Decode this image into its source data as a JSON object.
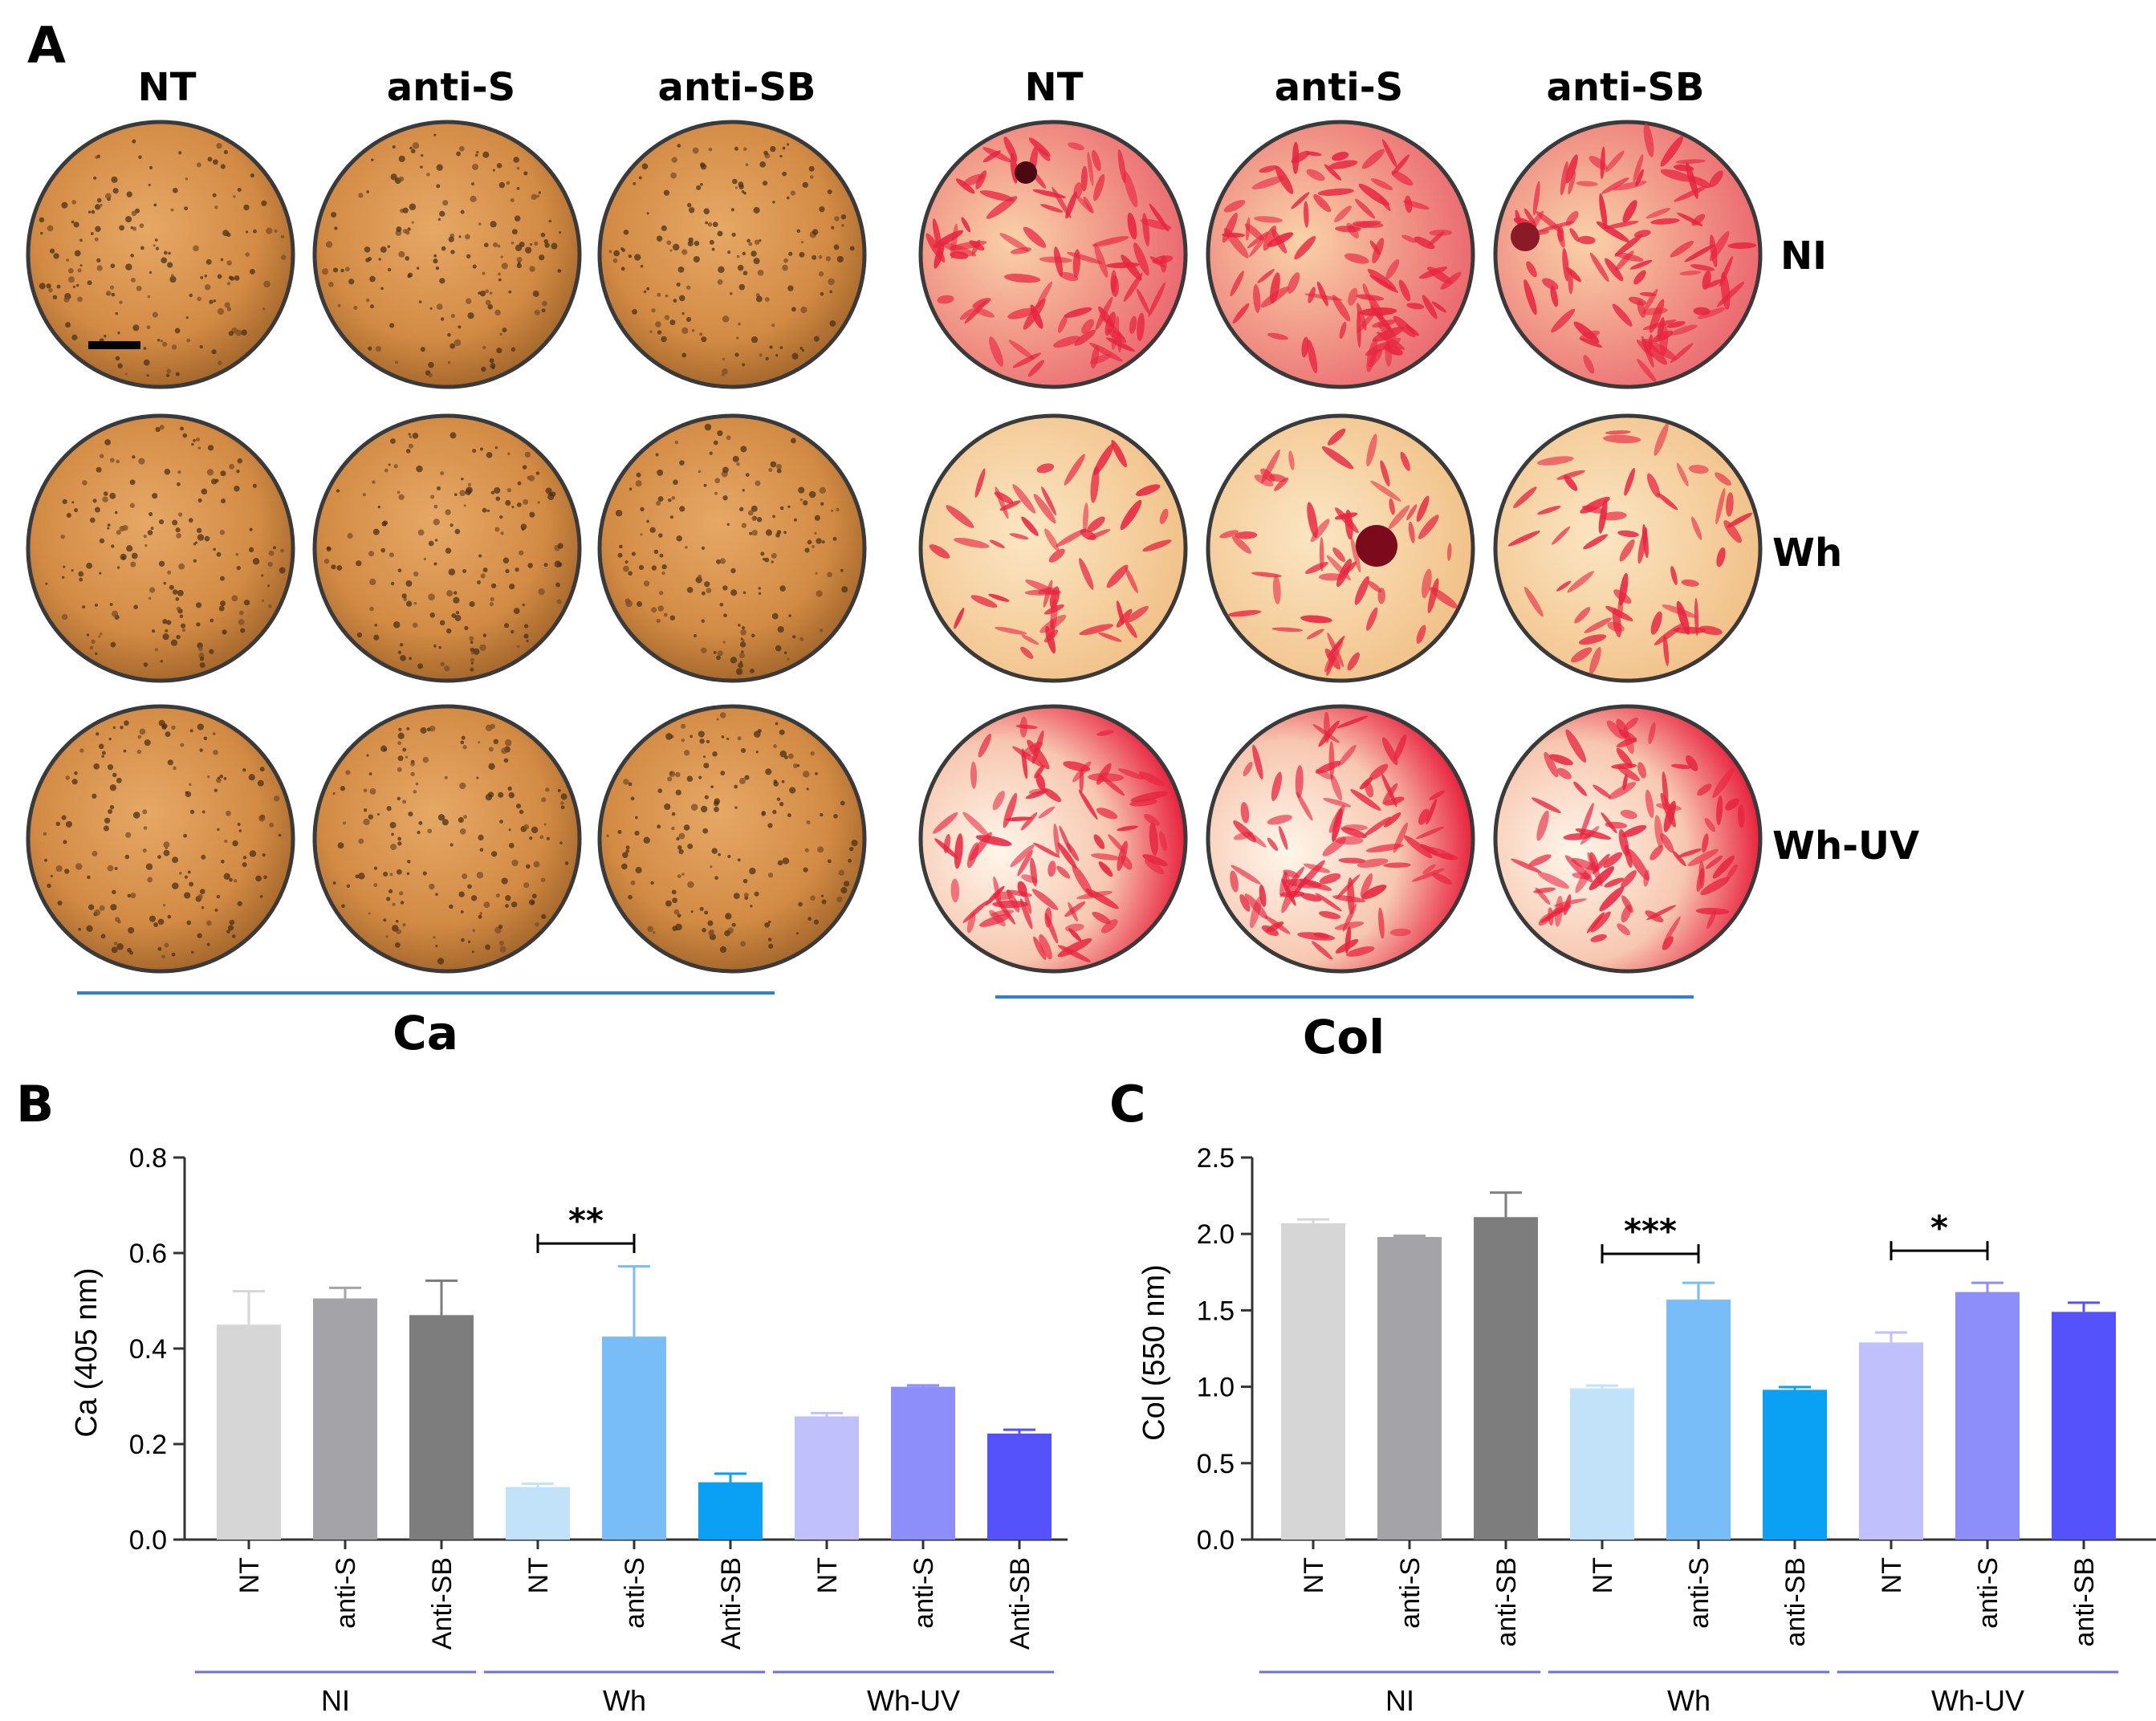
{
  "panel_a": {
    "letter": "A",
    "ca_columns": [
      "NT",
      "anti-S",
      "anti-SB"
    ],
    "col_columns": [
      "NT",
      "anti-S",
      "anti-SB"
    ],
    "rows": [
      "NI",
      "Wh",
      "Wh-UV"
    ],
    "ca_label": "Ca",
    "col_label": "Col",
    "colors": {
      "ca_well": "#d9954a",
      "ca_rim": "#444444",
      "col_well": "#f0c08a",
      "col_stain": "#e8243f",
      "divider": "#2f7fd6"
    }
  },
  "chart_data": [
    {
      "panel": "B",
      "type": "bar",
      "ylabel": "Ca (405 nm)",
      "ylim": [
        0,
        0.8
      ],
      "yticks": [
        "0.0",
        "0.2",
        "0.4",
        "0.6",
        "0.8"
      ],
      "categories": [
        "NT",
        "anti-S",
        "Anti-SB",
        "NT",
        "anti-S",
        "Anti-SB",
        "NT",
        "anti-S",
        "Anti-SB"
      ],
      "values": [
        0.45,
        0.505,
        0.47,
        0.11,
        0.425,
        0.12,
        0.258,
        0.32,
        0.222
      ],
      "errors": [
        0.07,
        0.022,
        0.072,
        0.007,
        0.147,
        0.018,
        0.007,
        0.003,
        0.008
      ],
      "colors": [
        "#d6d6d6",
        "#a4a4a8",
        "#7d7d7d",
        "#c2e2fa",
        "#78bdf7",
        "#0aa0f4",
        "#c0c1fc",
        "#8e8efb",
        "#5652fb"
      ],
      "groups": [
        "NI",
        "Wh",
        "Wh-UV"
      ],
      "significance": [
        {
          "label": "**",
          "from": 3,
          "to": 4,
          "y": 0.62
        }
      ]
    },
    {
      "panel": "C",
      "type": "bar",
      "ylabel": "Col (550 nm)",
      "ylim": [
        0,
        2.5
      ],
      "yticks": [
        "0.0",
        "0.5",
        "1.0",
        "1.5",
        "2.0",
        "2.5"
      ],
      "categories": [
        "NT",
        "anti-S",
        "anti-SB",
        "NT",
        "anti-S",
        "anti-SB",
        "NT",
        "anti-S",
        "anti-SB"
      ],
      "values": [
        2.07,
        1.98,
        2.11,
        0.99,
        1.57,
        0.98,
        1.29,
        1.62,
        1.49
      ],
      "errors": [
        0.025,
        0.008,
        0.16,
        0.018,
        0.11,
        0.018,
        0.065,
        0.06,
        0.06
      ],
      "colors": [
        "#d6d6d6",
        "#a4a4a8",
        "#7d7d7d",
        "#c2e2fa",
        "#78bdf7",
        "#0aa0f4",
        "#c0c1fc",
        "#8e8efb",
        "#5652fb"
      ],
      "groups": [
        "NI",
        "Wh",
        "Wh-UV"
      ],
      "significance": [
        {
          "label": "***",
          "from": 3,
          "to": 4,
          "y": 1.87
        },
        {
          "label": "*",
          "from": 6,
          "to": 7,
          "y": 1.89
        }
      ]
    }
  ]
}
